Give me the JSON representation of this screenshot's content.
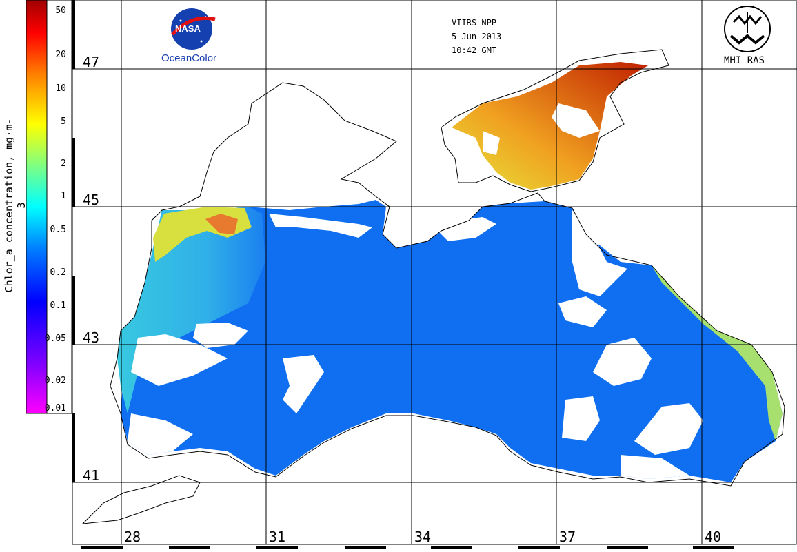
{
  "header": {
    "sensor": "VIIRS-NPP",
    "date": "5 Jun 2013",
    "time": "10:42 GMT"
  },
  "logos": {
    "nasa_name": "NASA",
    "nasa_caption": "OceanColor",
    "mhi_caption": "MHI RAS"
  },
  "colorbar": {
    "label": "Chlor_a concentration, mg·m-3",
    "scale": "log",
    "range": [
      0.01,
      60
    ],
    "ticks": [
      "50",
      "20",
      "10",
      "5",
      "2",
      "1",
      "0.5",
      "0.2",
      "0.1",
      "0.05",
      "0.02",
      "0.01"
    ],
    "colors": [
      "#ff00ff",
      "#8000ff",
      "#0000ff",
      "#0080ff",
      "#00ffff",
      "#80ff80",
      "#ffff00",
      "#ff8000",
      "#ff0000",
      "#a00000"
    ]
  },
  "grid": {
    "latitudes": [
      "47",
      "45",
      "43",
      "41"
    ],
    "longitudes": [
      "28",
      "31",
      "34",
      "37",
      "40"
    ]
  },
  "map": {
    "region": "Black Sea",
    "land_color": "#ffffff",
    "cloud_color": "#ffffff",
    "open_sea_color": "#0f6ff0",
    "coastal_color": "#3ac6e6",
    "azov_color": "#f0901a"
  }
}
